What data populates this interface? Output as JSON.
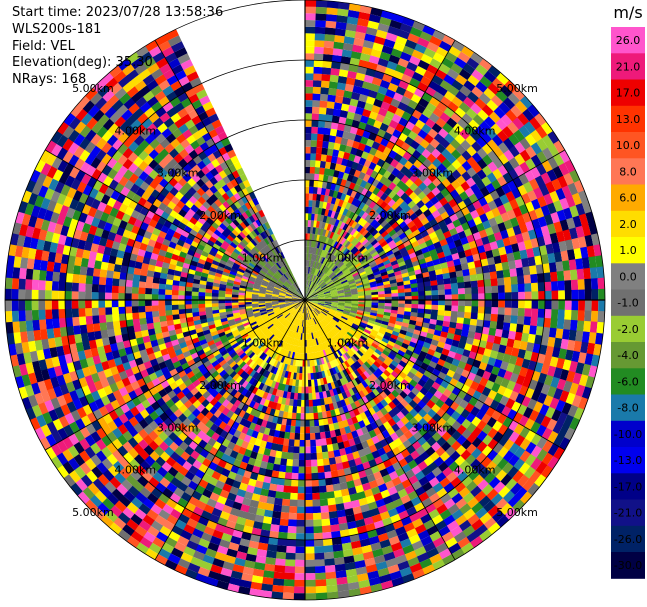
{
  "header": {
    "start_time": "Start time: 2023/07/28 13:58:36",
    "instrument": "WLS200s-181",
    "field": "Field: VEL",
    "elevation": "Elevation(deg): 35.30",
    "nrays": "NRays: 168"
  },
  "chart_data": {
    "type": "heatmap",
    "projection": "polar-ppi",
    "field": "VEL",
    "unit_label": "m/s",
    "range_rings_km": [
      1,
      2,
      3,
      4,
      5
    ],
    "ring_labels": [
      "1.00km",
      "2.00km",
      "3.00km",
      "4.00km",
      "5.00km"
    ],
    "max_range_km": 5.0,
    "n_rays": 168,
    "gap_azimuth_deg": [
      335,
      360
    ],
    "colorbar": {
      "labels": [
        "26.0",
        "21.0",
        "17.0",
        "13.0",
        "10.0",
        "8.0",
        "6.0",
        "2.0",
        "1.0",
        "0.0",
        "-1.0",
        "-2.0",
        "-4.0",
        "-6.0",
        "-8.0",
        "-10.0",
        "-13.0",
        "-17.0",
        "-21.0",
        "-26.0",
        "-30.0"
      ],
      "colors": [
        "#ff55cc",
        "#ee1a7a",
        "#ee0000",
        "#ff3300",
        "#ff5522",
        "#ff7755",
        "#ffaa00",
        "#ffdd00",
        "#ffff00",
        "#808080",
        "#707070",
        "#99cc33",
        "#669933",
        "#228b22",
        "#1a7aaa",
        "#0000cc",
        "#0000ee",
        "#000088",
        "#111188",
        "#002266",
        "#000044"
      ]
    }
  }
}
